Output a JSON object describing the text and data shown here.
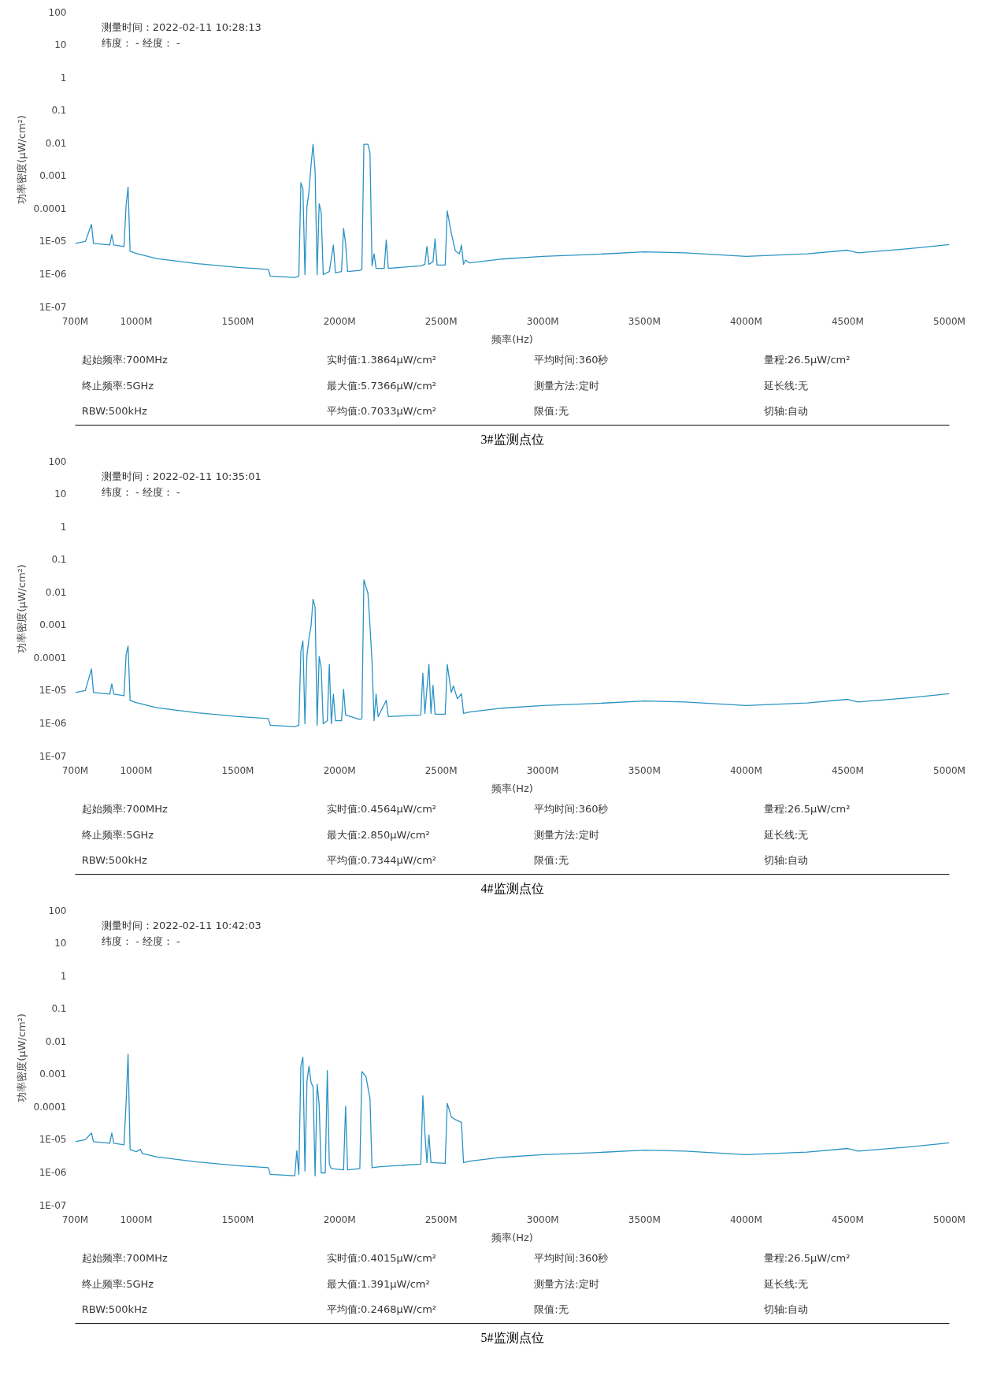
{
  "chart_data": [
    {
      "type": "line",
      "title": "3#监测点位",
      "xlabel": "频率(Hz)",
      "ylabel": "功率密度(μW/cm²)",
      "log": "y",
      "xlim": [
        700,
        5000
      ],
      "xticks": [
        {
          "value": 700,
          "label": "700M"
        },
        {
          "value": 1000,
          "label": "1000M"
        },
        {
          "value": 1500,
          "label": "1500M"
        },
        {
          "value": 2000,
          "label": "2000M"
        },
        {
          "value": 2500,
          "label": "2500M"
        },
        {
          "value": 3000,
          "label": "3000M"
        },
        {
          "value": 3500,
          "label": "3500M"
        },
        {
          "value": 4000,
          "label": "4000M"
        },
        {
          "value": 4500,
          "label": "4500M"
        },
        {
          "value": 5000,
          "label": "5000M"
        }
      ],
      "ylim": [
        1e-07,
        100
      ],
      "yticks": [
        {
          "value": 1e-07,
          "label": "1E-07"
        },
        {
          "value": 1e-06,
          "label": "1E-06"
        },
        {
          "value": 1e-05,
          "label": "1E-05"
        },
        {
          "value": 0.0001,
          "label": "0.0001"
        },
        {
          "value": 0.001,
          "label": "0.001"
        },
        {
          "value": 0.01,
          "label": "0.01"
        },
        {
          "value": 0.1,
          "label": "0.1"
        },
        {
          "value": 1,
          "label": "1"
        },
        {
          "value": 10,
          "label": "10"
        },
        {
          "value": 100,
          "label": "100"
        }
      ],
      "x": [
        700,
        750,
        780,
        790,
        870,
        880,
        890,
        940,
        950,
        960,
        970,
        1000,
        1100,
        1300,
        1500,
        1650,
        1660,
        1780,
        1800,
        1810,
        1820,
        1830,
        1840,
        1850,
        1860,
        1870,
        1880,
        1890,
        1900,
        1910,
        1920,
        1950,
        1970,
        1980,
        2010,
        2020,
        2030,
        2040,
        2100,
        2110,
        2120,
        2140,
        2150,
        2160,
        2170,
        2180,
        2220,
        2230,
        2240,
        2400,
        2420,
        2430,
        2440,
        2460,
        2470,
        2480,
        2520,
        2530,
        2550,
        2570,
        2590,
        2600,
        2610,
        2620,
        2640,
        2800,
        3000,
        3250,
        3500,
        3700,
        4000,
        4300,
        4500,
        4550,
        4800,
        5000
      ],
      "series": [
        {
          "color": "#2a93c4",
          "values": [
            8.7e-06,
            1e-05,
            3.3e-05,
            8.7e-06,
            7.8e-06,
            1.6e-05,
            7.8e-06,
            7e-06,
            0.00012,
            0.00046,
            5e-06,
            4.3e-06,
            3e-06,
            2.1e-06,
            1.6e-06,
            1.4e-06,
            8.7e-07,
            7.9e-07,
            8.7e-07,
            0.00062,
            0.00041,
            9.7e-07,
            0.00012,
            0.00033,
            0.0021,
            0.0093,
            0.0014,
            9.7e-07,
            0.00014,
            7.7e-05,
            9.7e-07,
            1.2e-06,
            7.8e-06,
            1.1e-06,
            1.2e-06,
            2.5e-05,
            8.7e-06,
            1.2e-06,
            1.3e-06,
            1.4e-06,
            0.0093,
            0.0093,
            0.005,
            1.8e-06,
            4.2e-06,
            1.5e-06,
            1.5e-06,
            1.1e-05,
            1.5e-06,
            1.8e-06,
            2e-06,
            7e-06,
            2e-06,
            2.4e-06,
            1.2e-05,
            1.9e-06,
            1.9e-06,
            8.6e-05,
            1.8e-05,
            5.1e-06,
            4.2e-06,
            7.8e-06,
            2e-06,
            2.7e-06,
            2.2e-06,
            2.9e-06,
            3.5e-06,
            4e-06,
            4.8e-06,
            4.5e-06,
            3.5e-06,
            4.2e-06,
            5.4e-06,
            4.5e-06,
            6e-06,
            8e-06
          ]
        }
      ],
      "annotations": [
        "测量时间：2022-02-11 10:28:13",
        "纬度： - 经度：  -",
        "起始频率:700MHz",
        "实时值:1.3864μW/cm²",
        "平均时间:360秒",
        "量程:26.5μW/cm²",
        "终止频率:5GHz",
        "最大值:5.7366μW/cm²",
        "测量方法:定时",
        "延长线:无",
        "RBW:500kHz",
        "平均值:0.7033μW/cm²",
        "限值:无",
        "切轴:自动"
      ]
    },
    {
      "type": "line",
      "title": "4#监测点位",
      "xlabel": "频率(Hz)",
      "ylabel": "功率密度(μW/cm²)",
      "log": "y",
      "xlim": [
        700,
        5000
      ],
      "xticks": [
        {
          "value": 700,
          "label": "700M"
        },
        {
          "value": 1000,
          "label": "1000M"
        },
        {
          "value": 1500,
          "label": "1500M"
        },
        {
          "value": 2000,
          "label": "2000M"
        },
        {
          "value": 2500,
          "label": "2500M"
        },
        {
          "value": 3000,
          "label": "3000M"
        },
        {
          "value": 3500,
          "label": "3500M"
        },
        {
          "value": 4000,
          "label": "4000M"
        },
        {
          "value": 4500,
          "label": "4500M"
        },
        {
          "value": 5000,
          "label": "5000M"
        }
      ],
      "ylim": [
        1e-07,
        100
      ],
      "yticks": [
        {
          "value": 1e-07,
          "label": "1E-07"
        },
        {
          "value": 1e-06,
          "label": "1E-06"
        },
        {
          "value": 1e-05,
          "label": "1E-05"
        },
        {
          "value": 0.0001,
          "label": "0.0001"
        },
        {
          "value": 0.001,
          "label": "0.001"
        },
        {
          "value": 0.01,
          "label": "0.01"
        },
        {
          "value": 0.1,
          "label": "0.1"
        },
        {
          "value": 1,
          "label": "1"
        },
        {
          "value": 10,
          "label": "10"
        },
        {
          "value": 100,
          "label": "100"
        }
      ],
      "x": [
        700,
        750,
        780,
        790,
        870,
        880,
        890,
        940,
        950,
        960,
        970,
        1000,
        1100,
        1300,
        1500,
        1650,
        1660,
        1780,
        1800,
        1810,
        1820,
        1830,
        1840,
        1850,
        1860,
        1870,
        1880,
        1890,
        1900,
        1910,
        1920,
        1940,
        1950,
        1960,
        1970,
        1980,
        2010,
        2020,
        2030,
        2100,
        2110,
        2120,
        2140,
        2150,
        2160,
        2170,
        2180,
        2190,
        2230,
        2240,
        2400,
        2410,
        2420,
        2440,
        2450,
        2460,
        2470,
        2520,
        2530,
        2550,
        2560,
        2580,
        2600,
        2610,
        2640,
        2800,
        3000,
        3250,
        3500,
        3700,
        4000,
        4300,
        4500,
        4550,
        4800,
        5000
      ],
      "series": [
        {
          "color": "#2a93c4",
          "values": [
            8.7e-06,
            1e-05,
            4.6e-05,
            8.7e-06,
            7.8e-06,
            1.6e-05,
            7.8e-06,
            7e-06,
            0.00012,
            0.00023,
            5e-06,
            4.3e-06,
            3e-06,
            2.1e-06,
            1.6e-06,
            1.4e-06,
            8.7e-07,
            7.9e-07,
            8.7e-07,
            0.00016,
            0.00033,
            9.7e-07,
            0.00012,
            0.0004,
            0.00094,
            0.0062,
            0.0035,
            8.7e-07,
            0.00011,
            5e-05,
            9.7e-07,
            1.2e-06,
            6.3e-05,
            9.7e-07,
            7.8e-06,
            1.2e-06,
            1.2e-06,
            1.1e-05,
            1.8e-06,
            1.3e-06,
            1.4e-06,
            0.024,
            0.0093,
            0.00094,
            7.7e-05,
            1.2e-06,
            7.8e-06,
            1.6e-06,
            5e-06,
            1.6e-06,
            1.8e-06,
            3.4e-05,
            2e-06,
            6.3e-05,
            2e-06,
            1.45e-05,
            1.9e-06,
            1.9e-06,
            6.3e-05,
            8.7e-06,
            1.4e-05,
            5.6e-06,
            8e-06,
            2e-06,
            2.2e-06,
            2.9e-06,
            3.5e-06,
            4e-06,
            4.8e-06,
            4.5e-06,
            3.5e-06,
            4.2e-06,
            5.4e-06,
            4.5e-06,
            6e-06,
            8e-06
          ]
        }
      ],
      "annotations": [
        "测量时间：2022-02-11 10:35:01",
        "纬度： - 经度：  -",
        "起始频率:700MHz",
        "实时值:0.4564μW/cm²",
        "平均时间:360秒",
        "量程:26.5μW/cm²",
        "终止频率:5GHz",
        "最大值:2.850μW/cm²",
        "测量方法:定时",
        "延长线:无",
        "RBW:500kHz",
        "平均值:0.7344μW/cm²",
        "限值:无",
        "切轴:自动"
      ]
    },
    {
      "type": "line",
      "title": "5#监测点位",
      "xlabel": "频率(Hz)",
      "ylabel": "功率密度(μW/cm²)",
      "log": "y",
      "xlim": [
        700,
        5000
      ],
      "xticks": [
        {
          "value": 700,
          "label": "700M"
        },
        {
          "value": 1000,
          "label": "1000M"
        },
        {
          "value": 1500,
          "label": "1500M"
        },
        {
          "value": 2000,
          "label": "2000M"
        },
        {
          "value": 2500,
          "label": "2500M"
        },
        {
          "value": 3000,
          "label": "3000M"
        },
        {
          "value": 3500,
          "label": "3500M"
        },
        {
          "value": 4000,
          "label": "4000M"
        },
        {
          "value": 4500,
          "label": "4500M"
        },
        {
          "value": 5000,
          "label": "5000M"
        }
      ],
      "ylim": [
        1e-07,
        100
      ],
      "yticks": [
        {
          "value": 1e-07,
          "label": "1E-07"
        },
        {
          "value": 1e-06,
          "label": "1E-06"
        },
        {
          "value": 1e-05,
          "label": "1E-05"
        },
        {
          "value": 0.0001,
          "label": "0.0001"
        },
        {
          "value": 0.001,
          "label": "0.001"
        },
        {
          "value": 0.01,
          "label": "0.01"
        },
        {
          "value": 0.1,
          "label": "0.1"
        },
        {
          "value": 1,
          "label": "1"
        },
        {
          "value": 10,
          "label": "10"
        },
        {
          "value": 100,
          "label": "100"
        }
      ],
      "x": [
        700,
        750,
        780,
        790,
        870,
        880,
        890,
        940,
        950,
        960,
        970,
        1000,
        1020,
        1030,
        1100,
        1300,
        1500,
        1650,
        1660,
        1780,
        1790,
        1800,
        1810,
        1820,
        1830,
        1840,
        1850,
        1860,
        1870,
        1880,
        1890,
        1900,
        1910,
        1930,
        1940,
        1950,
        1960,
        2020,
        2030,
        2040,
        2100,
        2110,
        2130,
        2150,
        2160,
        2200,
        2400,
        2410,
        2420,
        2430,
        2440,
        2450,
        2520,
        2530,
        2550,
        2570,
        2600,
        2610,
        2640,
        2800,
        3000,
        3250,
        3500,
        3700,
        4000,
        4300,
        4500,
        4550,
        4800,
        5000
      ],
      "series": [
        {
          "color": "#2a93c4",
          "values": [
            8.7e-06,
            1e-05,
            1.6e-05,
            8.7e-06,
            7.8e-06,
            1.6e-05,
            7.8e-06,
            7e-06,
            0.00012,
            0.0041,
            5e-06,
            4.3e-06,
            5.1e-06,
            3.8e-06,
            3e-06,
            2.1e-06,
            1.6e-06,
            1.4e-06,
            8.7e-07,
            7.9e-07,
            4.6e-06,
            8.7e-07,
            0.00175,
            0.0033,
            1.1e-06,
            0.00062,
            0.00175,
            0.00056,
            0.00041,
            7.9e-07,
            0.0005,
            0.00012,
            9.7e-07,
            9.7e-07,
            0.0013,
            1.8e-06,
            1.3e-06,
            1.2e-06,
            0.000105,
            1.2e-06,
            1.3e-06,
            0.0012,
            0.00085,
            0.00018,
            1.4e-06,
            1.5e-06,
            1.8e-06,
            0.00022,
            1.6e-05,
            2e-06,
            1.4e-05,
            2e-06,
            1.9e-06,
            0.00013,
            5e-05,
            4.1e-05,
            3.4e-05,
            2e-06,
            2.2e-06,
            2.9e-06,
            3.5e-06,
            4e-06,
            4.8e-06,
            4.5e-06,
            3.5e-06,
            4.2e-06,
            5.4e-06,
            4.5e-06,
            6e-06,
            8e-06
          ]
        }
      ],
      "annotations": [
        "测量时间：2022-02-11 10:42:03",
        "纬度： - 经度：  -",
        "起始频率:700MHz",
        "实时值:0.4015μW/cm²",
        "平均时间:360秒",
        "量程:26.5μW/cm²",
        "终止频率:5GHz",
        "最大值:1.391μW/cm²",
        "测量方法:定时",
        "延长线:无",
        "RBW:500kHz",
        "平均值:0.2468μW/cm²",
        "限值:无",
        "切轴:自动"
      ]
    }
  ]
}
